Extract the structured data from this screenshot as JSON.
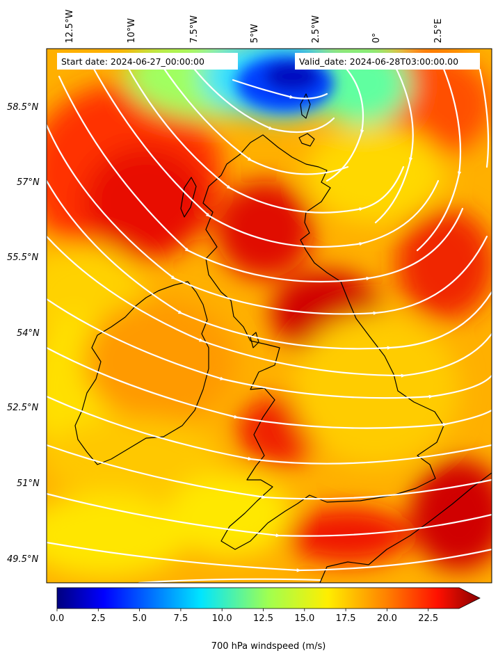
{
  "header": {
    "start_label": "Start date: 2024-06-27_00:00:00",
    "valid_label": "Valid_date: 2024-06-28T03:00:00.00"
  },
  "longitude_labels": [
    "12.5°W",
    "10°W",
    "7.5°W",
    "5°W",
    "2.5°W",
    "0°",
    "2.5°E"
  ],
  "latitude_labels": [
    "58.5°N",
    "57°N",
    "55.5°N",
    "54°N",
    "52.5°N",
    "51°N",
    "49.5°N"
  ],
  "colorbar": {
    "label": "700 hPa windspeed (m/s)",
    "ticks": [
      "0.0",
      "2.5",
      "5.0",
      "7.5",
      "10.0",
      "12.5",
      "15.0",
      "17.5",
      "20.0",
      "22.5"
    ],
    "min": 0,
    "max": 25,
    "extend": "max",
    "colormap": "jet"
  },
  "map": {
    "variable": "700 hPa windspeed",
    "units": "m/s",
    "colormap": "jet",
    "features": [
      "filled wind speed contours",
      "white streamlines",
      "black coastlines"
    ]
  }
}
